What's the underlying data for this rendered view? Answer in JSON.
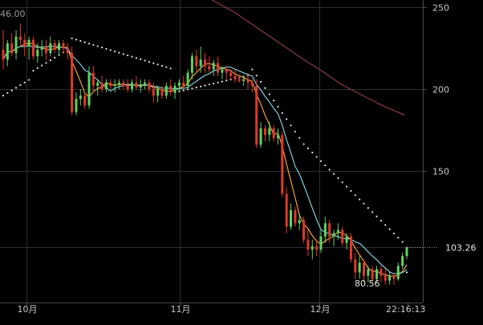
{
  "chart_data": {
    "type": "candlestick",
    "y_ticks": [
      "250",
      "200",
      "150"
    ],
    "y_range": [
      73,
      252
    ],
    "x_ticks": [
      "10月",
      "11月",
      "12月"
    ],
    "current_price_label": "103.26",
    "current_price": 103.26,
    "low_label": "80.56",
    "low_value": 80.56,
    "high_label_partial": "46.00",
    "time_label": "22:16:13",
    "colors": {
      "up": "#5fd35f",
      "down": "#e0392b",
      "ma_fast": "#f0a03c",
      "ma_slow": "#7fd0e0",
      "ma_long": "#8a3a45",
      "sar": "#e6e6e6",
      "grid": "#2e2e2e",
      "background": "#000000"
    },
    "candles": [
      {
        "o": 224,
        "h": 236,
        "l": 212,
        "c": 218
      },
      {
        "o": 218,
        "h": 230,
        "l": 214,
        "c": 228
      },
      {
        "o": 228,
        "h": 234,
        "l": 220,
        "c": 222
      },
      {
        "o": 222,
        "h": 236,
        "l": 218,
        "c": 232
      },
      {
        "o": 232,
        "h": 240,
        "l": 226,
        "c": 230
      },
      {
        "o": 230,
        "h": 234,
        "l": 220,
        "c": 226
      },
      {
        "o": 226,
        "h": 232,
        "l": 218,
        "c": 230
      },
      {
        "o": 230,
        "h": 232,
        "l": 218,
        "c": 220
      },
      {
        "o": 220,
        "h": 228,
        "l": 216,
        "c": 224
      },
      {
        "o": 224,
        "h": 230,
        "l": 220,
        "c": 226
      },
      {
        "o": 226,
        "h": 230,
        "l": 218,
        "c": 222
      },
      {
        "o": 222,
        "h": 232,
        "l": 220,
        "c": 228
      },
      {
        "o": 228,
        "h": 230,
        "l": 222,
        "c": 224
      },
      {
        "o": 224,
        "h": 230,
        "l": 220,
        "c": 228
      },
      {
        "o": 228,
        "h": 230,
        "l": 222,
        "c": 225
      },
      {
        "o": 225,
        "h": 228,
        "l": 218,
        "c": 222
      },
      {
        "o": 222,
        "h": 226,
        "l": 184,
        "c": 186
      },
      {
        "o": 186,
        "h": 198,
        "l": 184,
        "c": 194
      },
      {
        "o": 194,
        "h": 200,
        "l": 190,
        "c": 196
      },
      {
        "o": 196,
        "h": 198,
        "l": 188,
        "c": 190
      },
      {
        "o": 190,
        "h": 214,
        "l": 188,
        "c": 210
      },
      {
        "o": 210,
        "h": 214,
        "l": 198,
        "c": 202
      },
      {
        "o": 202,
        "h": 206,
        "l": 196,
        "c": 204
      },
      {
        "o": 204,
        "h": 208,
        "l": 198,
        "c": 200
      },
      {
        "o": 200,
        "h": 206,
        "l": 198,
        "c": 204
      },
      {
        "o": 204,
        "h": 206,
        "l": 200,
        "c": 202
      },
      {
        "o": 202,
        "h": 206,
        "l": 198,
        "c": 203
      },
      {
        "o": 203,
        "h": 206,
        "l": 200,
        "c": 204
      },
      {
        "o": 204,
        "h": 206,
        "l": 200,
        "c": 202
      },
      {
        "o": 202,
        "h": 206,
        "l": 198,
        "c": 200
      },
      {
        "o": 200,
        "h": 206,
        "l": 198,
        "c": 204
      },
      {
        "o": 204,
        "h": 208,
        "l": 200,
        "c": 201
      },
      {
        "o": 201,
        "h": 206,
        "l": 198,
        "c": 203
      },
      {
        "o": 203,
        "h": 206,
        "l": 200,
        "c": 204
      },
      {
        "o": 204,
        "h": 206,
        "l": 198,
        "c": 200
      },
      {
        "o": 200,
        "h": 204,
        "l": 192,
        "c": 196
      },
      {
        "o": 196,
        "h": 202,
        "l": 192,
        "c": 200
      },
      {
        "o": 200,
        "h": 202,
        "l": 194,
        "c": 196
      },
      {
        "o": 196,
        "h": 204,
        "l": 194,
        "c": 202
      },
      {
        "o": 202,
        "h": 206,
        "l": 196,
        "c": 198
      },
      {
        "o": 198,
        "h": 204,
        "l": 194,
        "c": 202
      },
      {
        "o": 202,
        "h": 206,
        "l": 198,
        "c": 204
      },
      {
        "o": 204,
        "h": 208,
        "l": 200,
        "c": 202
      },
      {
        "o": 202,
        "h": 212,
        "l": 200,
        "c": 210
      },
      {
        "o": 210,
        "h": 222,
        "l": 206,
        "c": 220
      },
      {
        "o": 220,
        "h": 224,
        "l": 210,
        "c": 214
      },
      {
        "o": 214,
        "h": 226,
        "l": 210,
        "c": 218
      },
      {
        "o": 218,
        "h": 222,
        "l": 210,
        "c": 214
      },
      {
        "o": 214,
        "h": 220,
        "l": 210,
        "c": 212
      },
      {
        "o": 212,
        "h": 218,
        "l": 208,
        "c": 216
      },
      {
        "o": 216,
        "h": 220,
        "l": 208,
        "c": 210
      },
      {
        "o": 210,
        "h": 214,
        "l": 206,
        "c": 212
      },
      {
        "o": 212,
        "h": 214,
        "l": 206,
        "c": 210
      },
      {
        "o": 210,
        "h": 212,
        "l": 206,
        "c": 208
      },
      {
        "o": 208,
        "h": 212,
        "l": 204,
        "c": 206
      },
      {
        "o": 206,
        "h": 208,
        "l": 204,
        "c": 205
      },
      {
        "o": 205,
        "h": 208,
        "l": 202,
        "c": 206
      },
      {
        "o": 206,
        "h": 210,
        "l": 200,
        "c": 204
      },
      {
        "o": 204,
        "h": 206,
        "l": 198,
        "c": 202
      },
      {
        "o": 202,
        "h": 206,
        "l": 164,
        "c": 166
      },
      {
        "o": 166,
        "h": 180,
        "l": 164,
        "c": 176
      },
      {
        "o": 176,
        "h": 178,
        "l": 168,
        "c": 172
      },
      {
        "o": 172,
        "h": 180,
        "l": 168,
        "c": 176
      },
      {
        "o": 176,
        "h": 178,
        "l": 168,
        "c": 170
      },
      {
        "o": 170,
        "h": 176,
        "l": 166,
        "c": 172
      },
      {
        "o": 172,
        "h": 174,
        "l": 134,
        "c": 136
      },
      {
        "o": 136,
        "h": 140,
        "l": 112,
        "c": 116
      },
      {
        "o": 116,
        "h": 130,
        "l": 114,
        "c": 126
      },
      {
        "o": 126,
        "h": 128,
        "l": 116,
        "c": 118
      },
      {
        "o": 118,
        "h": 124,
        "l": 114,
        "c": 120
      },
      {
        "o": 120,
        "h": 122,
        "l": 106,
        "c": 108
      },
      {
        "o": 108,
        "h": 114,
        "l": 98,
        "c": 102
      },
      {
        "o": 102,
        "h": 108,
        "l": 96,
        "c": 104
      },
      {
        "o": 104,
        "h": 108,
        "l": 98,
        "c": 102
      },
      {
        "o": 102,
        "h": 114,
        "l": 100,
        "c": 110
      },
      {
        "o": 110,
        "h": 122,
        "l": 106,
        "c": 118
      },
      {
        "o": 118,
        "h": 120,
        "l": 106,
        "c": 110
      },
      {
        "o": 110,
        "h": 114,
        "l": 104,
        "c": 112
      },
      {
        "o": 112,
        "h": 118,
        "l": 108,
        "c": 114
      },
      {
        "o": 114,
        "h": 116,
        "l": 104,
        "c": 106
      },
      {
        "o": 106,
        "h": 112,
        "l": 102,
        "c": 110
      },
      {
        "o": 110,
        "h": 112,
        "l": 94,
        "c": 96
      },
      {
        "o": 96,
        "h": 100,
        "l": 84,
        "c": 88
      },
      {
        "o": 88,
        "h": 98,
        "l": 84,
        "c": 94
      },
      {
        "o": 94,
        "h": 96,
        "l": 82,
        "c": 86
      },
      {
        "o": 86,
        "h": 92,
        "l": 82,
        "c": 90
      },
      {
        "o": 90,
        "h": 92,
        "l": 82,
        "c": 84
      },
      {
        "o": 84,
        "h": 92,
        "l": 82,
        "c": 90
      },
      {
        "o": 90,
        "h": 92,
        "l": 82,
        "c": 86
      },
      {
        "o": 86,
        "h": 90,
        "l": 80.56,
        "c": 83
      },
      {
        "o": 83,
        "h": 88,
        "l": 80.56,
        "c": 86
      },
      {
        "o": 86,
        "h": 88,
        "l": 80.56,
        "c": 84
      },
      {
        "o": 84,
        "h": 94,
        "l": 83,
        "c": 92
      },
      {
        "o": 92,
        "h": 100,
        "l": 90,
        "c": 98
      },
      {
        "o": 98,
        "h": 104,
        "l": 96,
        "c": 103.26
      }
    ],
    "ma_long_points": [
      [
        41.3,
        258
      ],
      [
        44.4,
        253
      ],
      [
        48.1,
        247
      ],
      [
        51.6,
        240
      ],
      [
        55.1,
        233
      ],
      [
        58.6,
        226
      ],
      [
        62.5,
        218
      ],
      [
        66.4,
        211
      ],
      [
        70.3,
        203
      ],
      [
        74.2,
        197
      ],
      [
        78.9,
        190
      ],
      [
        83.6,
        184
      ]
    ],
    "plot": {
      "x_start": 0,
      "x_end": 84
    }
  }
}
